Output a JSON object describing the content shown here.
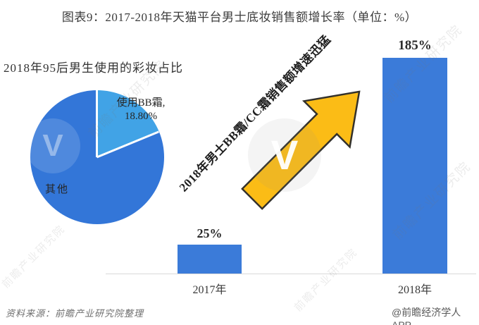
{
  "title": "图表9：2017-2018年天猫平台男士底妆销售额增长率（单位：%）",
  "chart_data": [
    {
      "type": "pie",
      "title": "2018年95后男生使用的彩妆占比",
      "labels": [
        "使用BB霜",
        "其他"
      ],
      "values": [
        18.8,
        81.2
      ],
      "slice_label_lines": [
        "使用BB霜,",
        "18.80%"
      ],
      "colors": [
        "#41A3E6",
        "#3376D8"
      ],
      "start_angle_deg": 0,
      "legend": "none",
      "separator_color": "#ffffff"
    },
    {
      "type": "bar",
      "categories": [
        "2017年",
        "2018年"
      ],
      "values": [
        25,
        185
      ],
      "value_labels": [
        "25%",
        "185%"
      ],
      "bar_color": "#3B7BD9",
      "ylim": [
        0,
        200
      ],
      "axis_line_color": "#D9D9D9",
      "gridlines": false,
      "unit": "%"
    }
  ],
  "annotation": {
    "text": "2018年男士BB霜/CC霜销售额增速迅猛",
    "arrow_color": "#FBBC16",
    "arrow_outline": "#33312B"
  },
  "footer": {
    "source": "资料来源：前瞻产业研究院整理",
    "credit": "@前瞻经济学人APP"
  },
  "watermark": {
    "text": "前瞻产业研究院",
    "logo_letter": "V"
  }
}
